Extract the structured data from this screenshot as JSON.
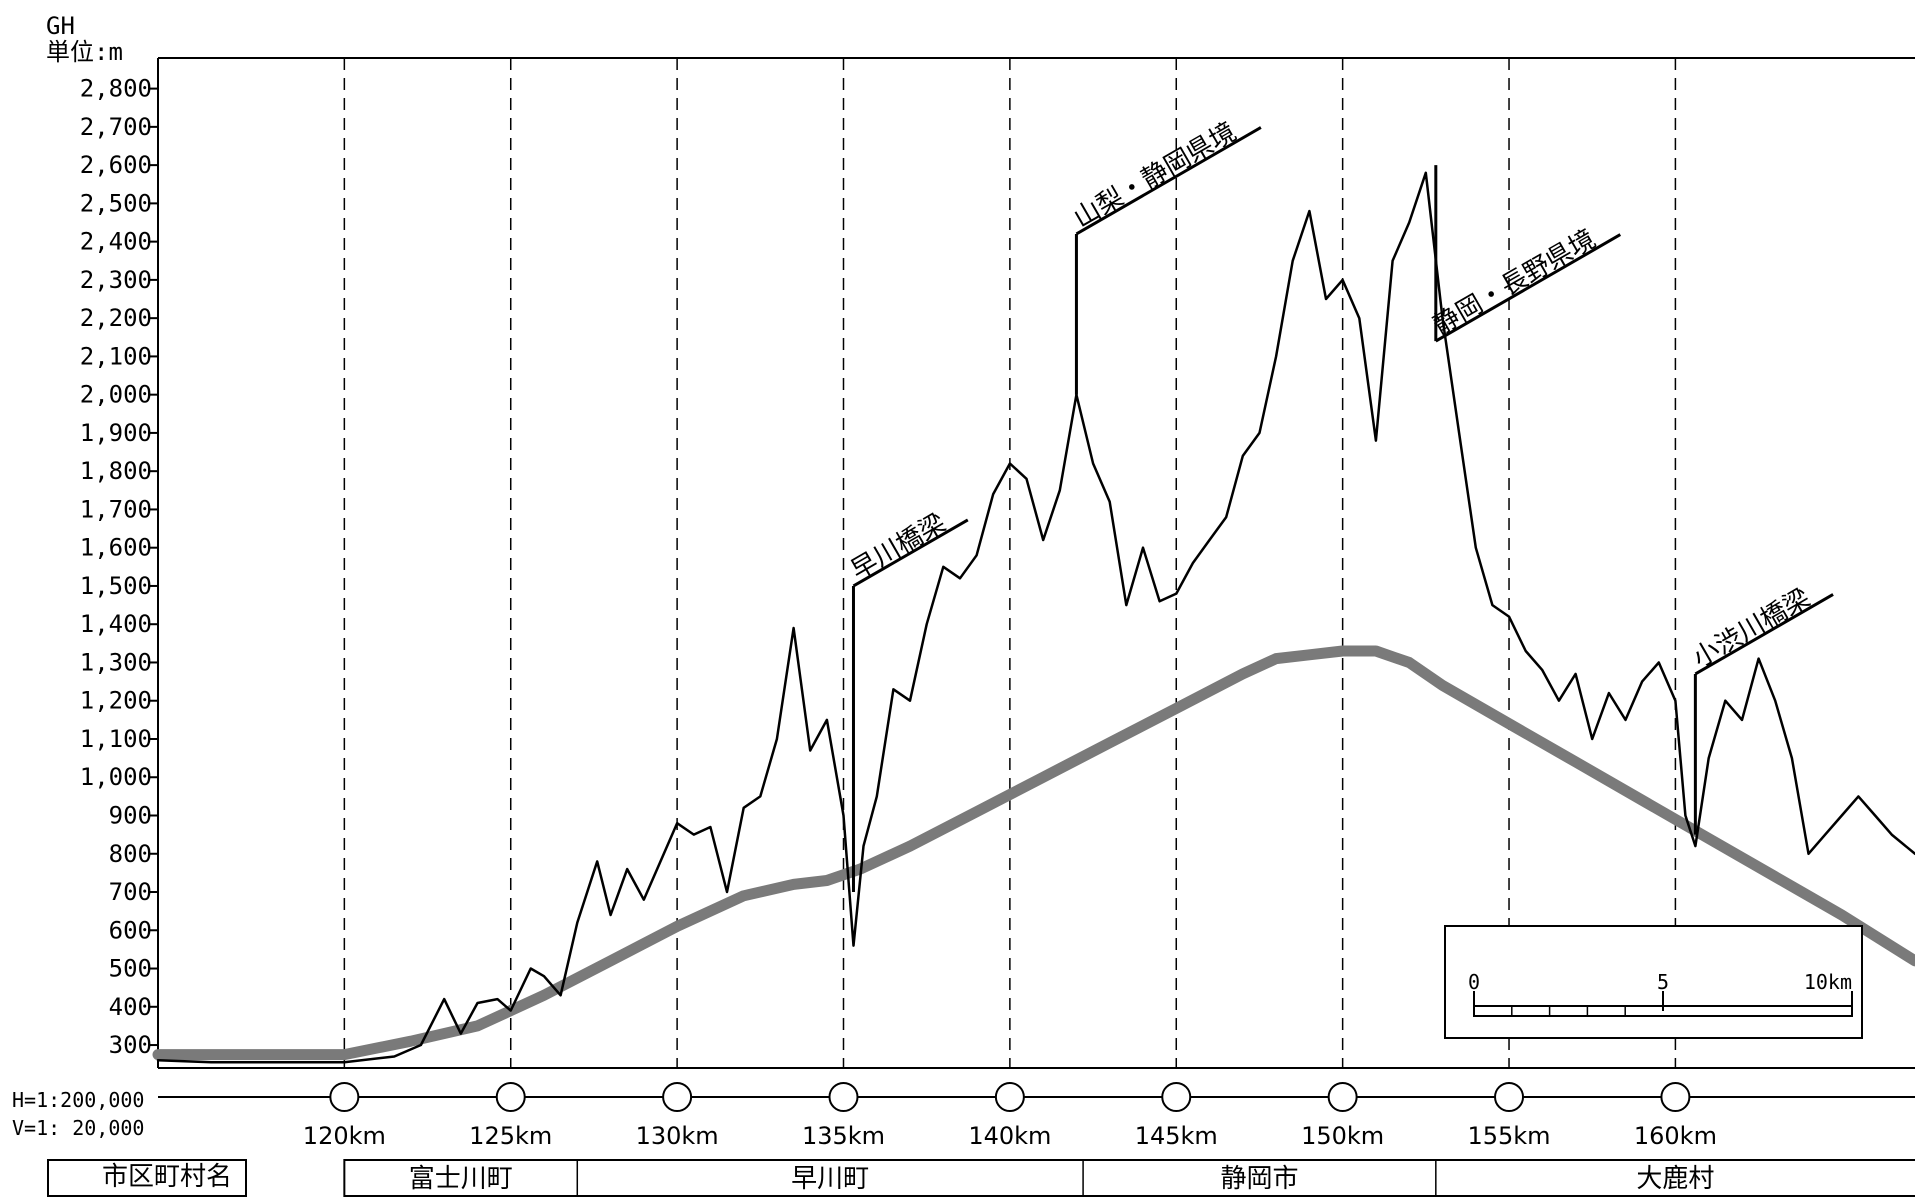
{
  "chart_data": {
    "type": "line",
    "yaxis_title": "GH",
    "unit_label": "単位:m",
    "scale_h": "H=1:200,000",
    "scale_v": "V=1: 20,000",
    "ylim": [
      240,
      2880
    ],
    "xlim": [
      114.4,
      167.2
    ],
    "y_ticks": [
      300,
      400,
      500,
      600,
      700,
      800,
      900,
      1000,
      1100,
      1200,
      1300,
      1400,
      1500,
      1600,
      1700,
      1800,
      1900,
      2000,
      2100,
      2200,
      2300,
      2400,
      2500,
      2600,
      2700,
      2800
    ],
    "y_tick_labels": [
      "300",
      "400",
      "500",
      "600",
      "700",
      "800",
      "900",
      "1,000",
      "1,100",
      "1,200",
      "1,300",
      "1,400",
      "1,500",
      "1,600",
      "1,700",
      "1,800",
      "1,900",
      "2,000",
      "2,100",
      "2,200",
      "2,300",
      "2,400",
      "2,500",
      "2,600",
      "2,700",
      "2,800"
    ],
    "x_ticks": [
      120,
      125,
      130,
      135,
      140,
      145,
      150,
      155,
      160
    ],
    "x_tick_labels": [
      "120km",
      "125km",
      "130km",
      "135km",
      "140km",
      "145km",
      "150km",
      "155km",
      "160km"
    ],
    "grid": "vertical dashed at km ticks",
    "series": [
      {
        "color": "#000000",
        "x": [
          114.4,
          116.0,
          118.0,
          120.0,
          121.5,
          122.3,
          123.0,
          123.5,
          124.0,
          124.6,
          125.0,
          125.6,
          126.0,
          126.5,
          127.0,
          127.6,
          128.0,
          128.5,
          129.0,
          129.5,
          130.0,
          130.5,
          131.0,
          131.5,
          132.0,
          132.5,
          133.0,
          133.5,
          134.0,
          134.5,
          135.0,
          135.3,
          135.6,
          136.0,
          136.5,
          137.0,
          137.5,
          138.0,
          138.5,
          139.0,
          139.5,
          140.0,
          140.5,
          141.0,
          141.5,
          142.0,
          142.5,
          143.0,
          143.5,
          144.0,
          144.5,
          145.0,
          145.5,
          146.0,
          146.5,
          147.0,
          147.5,
          148.0,
          148.5,
          149.0,
          149.5,
          150.0,
          150.5,
          151.0,
          151.5,
          152.0,
          152.5,
          153.0,
          153.5,
          154.0,
          154.5,
          155.0,
          155.5,
          156.0,
          156.5,
          157.0,
          157.5,
          158.0,
          158.5,
          159.0,
          159.5,
          160.0,
          160.3,
          160.6,
          161.0,
          161.5,
          162.0,
          162.5,
          163.0,
          163.5,
          164.0,
          164.5,
          165.0,
          165.5,
          166.0,
          166.5,
          167.2
        ],
        "y": [
          260,
          255,
          255,
          255,
          270,
          300,
          420,
          330,
          410,
          420,
          390,
          500,
          480,
          430,
          620,
          780,
          640,
          760,
          680,
          780,
          880,
          850,
          870,
          700,
          920,
          950,
          1100,
          1390,
          1070,
          1150,
          900,
          560,
          820,
          950,
          1230,
          1200,
          1400,
          1550,
          1520,
          1580,
          1740,
          1820,
          1780,
          1620,
          1750,
          2000,
          1820,
          1720,
          1450,
          1600,
          1460,
          1480,
          1560,
          1620,
          1680,
          1840,
          1900,
          2100,
          2350,
          2480,
          2250,
          2300,
          2200,
          1880,
          2350,
          2450,
          2580,
          2200,
          1900,
          1600,
          1450,
          1420,
          1330,
          1280,
          1200,
          1270,
          1100,
          1220,
          1150,
          1250,
          1300,
          1200,
          900,
          820,
          1050,
          1200,
          1150,
          1310,
          1200,
          1050,
          800,
          850,
          900,
          950,
          900,
          850,
          800
        ]
      },
      {
        "color": "#7a7a7a",
        "x": [
          114.4,
          117.0,
          120.0,
          122.0,
          124.0,
          126.0,
          128.0,
          130.0,
          132.0,
          133.5,
          134.5,
          135.5,
          137.0,
          139.0,
          141.0,
          143.0,
          145.0,
          147.0,
          148.0,
          149.0,
          150.0,
          151.0,
          152.0,
          153.0,
          155.0,
          157.0,
          159.0,
          161.0,
          163.0,
          165.0,
          167.2
        ],
        "y": [
          275,
          275,
          275,
          310,
          350,
          430,
          520,
          610,
          690,
          720,
          730,
          760,
          820,
          910,
          1000,
          1090,
          1180,
          1270,
          1310,
          1320,
          1330,
          1330,
          1300,
          1240,
          1140,
          1040,
          940,
          840,
          740,
          640,
          520
        ]
      }
    ],
    "annotations": [
      {
        "text": "早川橋梁",
        "x": 135.3,
        "y_low": 700,
        "y_high": 1500
      },
      {
        "text": "山梨・静岡県境",
        "x": 142.0,
        "y_low": 2000,
        "y_high": 2420
      },
      {
        "text": "静岡・長野県境",
        "x": 152.8,
        "y_low": 2600,
        "y_high": 2140
      },
      {
        "text": "小渋川橋梁",
        "x": 160.6,
        "y_low": 850,
        "y_high": 1270
      }
    ],
    "scale_bar": {
      "labels": [
        "0",
        "5",
        "10km"
      ]
    },
    "table": {
      "header": "市区町村名",
      "municipalities": [
        {
          "name": "富士川町",
          "from": 120.0,
          "to": 127.0
        },
        {
          "name": "早川町",
          "from": 127.0,
          "to": 142.2
        },
        {
          "name": "静岡市",
          "from": 142.2,
          "to": 152.8
        },
        {
          "name": "大鹿村",
          "from": 152.8,
          "to": 167.2
        }
      ]
    }
  }
}
